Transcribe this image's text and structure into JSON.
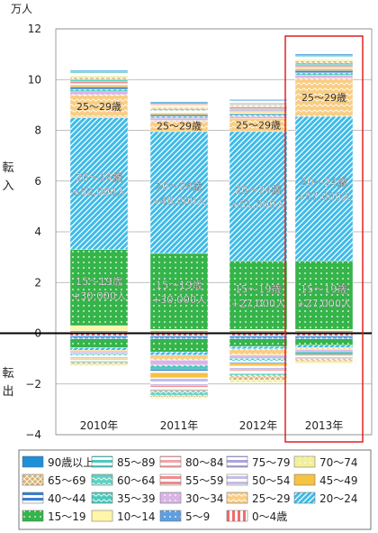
{
  "chart_data": {
    "type": "bar",
    "stacked": true,
    "title": "",
    "unit": "万人",
    "y_side_label_top": "転入",
    "y_side_label_bottom": "転出",
    "ylim": [
      -4,
      12
    ],
    "yticks": [
      "12",
      "10",
      "8",
      "6",
      "4",
      "2",
      "0",
      "−2",
      "−4"
    ],
    "categories": [
      "2010年",
      "2011年",
      "2012年",
      "2013年"
    ],
    "highlight_category": "2013年",
    "grid": true,
    "legend_position": "bottom",
    "series": [
      {
        "name": "90歳以上",
        "color": "#1e8fd8",
        "pattern": "solid",
        "values": [
          0.04,
          0.04,
          0.04,
          0.04
        ]
      },
      {
        "name": "85～89",
        "color": "#4fc7c0",
        "pattern": "hstripe",
        "values": [
          0.06,
          0.05,
          0.05,
          0.06
        ]
      },
      {
        "name": "80～84",
        "color": "#f3a3a6",
        "pattern": "hstripe",
        "values": [
          0.06,
          0.05,
          0.05,
          0.06
        ]
      },
      {
        "name": "75～79",
        "color": "#a9a4e0",
        "pattern": "hstripe",
        "values": [
          0.06,
          0.05,
          0.05,
          0.06
        ]
      },
      {
        "name": "70～74",
        "color": "#f2ef9a",
        "pattern": "dots",
        "values": [
          0.06,
          0.05,
          0.05,
          0.06
        ]
      },
      {
        "name": "65～69",
        "color": "#d8b271",
        "pattern": "cross",
        "values": [
          0.07,
          0.05,
          0.05,
          0.07
        ]
      },
      {
        "name": "60～64",
        "color": "#5ed1c2",
        "pattern": "wave",
        "values": [
          0.08,
          0.06,
          0.06,
          0.08
        ]
      },
      {
        "name": "55～59",
        "color": "#f08a8a",
        "pattern": "hstripe",
        "values": [
          0.07,
          0.05,
          0.05,
          0.07
        ]
      },
      {
        "name": "50～54",
        "color": "#c4bde6",
        "pattern": "hstripe",
        "values": [
          0.07,
          0.05,
          0.05,
          0.07
        ]
      },
      {
        "name": "45～49",
        "color": "#f6c242",
        "pattern": "solid",
        "values": [
          0.08,
          0.06,
          0.06,
          0.08
        ]
      },
      {
        "name": "40～44",
        "color": "#3a7fd0",
        "pattern": "hstripe",
        "values": [
          0.09,
          0.07,
          0.07,
          0.09
        ]
      },
      {
        "name": "35～39",
        "color": "#4cc8bd",
        "pattern": "wave",
        "values": [
          0.1,
          0.07,
          0.07,
          0.1
        ]
      },
      {
        "name": "30～34",
        "color": "#d9b5e6",
        "pattern": "dots",
        "values": [
          0.12,
          0.09,
          0.09,
          0.12
        ]
      },
      {
        "name": "25～29",
        "color": "#f9cd82",
        "pattern": "wave",
        "values": [
          0.9,
          0.44,
          0.52,
          1.5
        ]
      },
      {
        "name": "20～24",
        "color": "#3dbbe8",
        "pattern": "diag",
        "values": [
          5.2,
          4.8,
          5.1,
          5.7
        ],
        "labels": [
          "20～24歳\n+52,000人",
          "20～24歳\n+48,000人",
          "20～24歳\n+51,000人",
          "20～24歳\n+57,000人"
        ]
      },
      {
        "name": "15～19",
        "color": "#35b44a",
        "pattern": "dots",
        "values": [
          3.0,
          3.0,
          2.7,
          2.7
        ],
        "labels": [
          "15～19歳\n+30,000人",
          "15～19歳\n+30,000人",
          "15～19歳\n+27,000人",
          "15～19歳\n+27,000人"
        ]
      },
      {
        "name": "10～14",
        "color": "#fff6a8",
        "pattern": "solid",
        "values": [
          0.2,
          0.05,
          0.05,
          0.05
        ]
      },
      {
        "name": "5～9",
        "color": "#5f9fe0",
        "pattern": "dots",
        "values": [
          0.05,
          0.05,
          0.05,
          0.05
        ]
      },
      {
        "name": "0～4歳",
        "color": "#f26c6c",
        "pattern": "vstripe",
        "values": [
          0.05,
          0.05,
          0.05,
          0.05
        ]
      }
    ],
    "negative_values": [
      [
        -0.1,
        -0.1,
        -0.1,
        -0.1
      ],
      [
        -0.12,
        -0.12,
        -0.12,
        -0.12
      ],
      [
        -0.35,
        -0.52,
        -0.3,
        -0.25
      ],
      [
        -0.1,
        -0.12,
        -0.1,
        -0.1
      ],
      [
        -0.07,
        -0.2,
        -0.25,
        -0.07
      ],
      [
        -0.07,
        -0.2,
        -0.12,
        -0.07
      ],
      [
        -0.07,
        -0.15,
        -0.1,
        -0.07
      ],
      [
        -0.06,
        -0.15,
        -0.1,
        -0.06
      ],
      [
        -0.06,
        -0.2,
        -0.1,
        -0.06
      ],
      [
        -0.05,
        -0.3,
        -0.15,
        -0.05
      ],
      [
        -0.05,
        -0.2,
        -0.15,
        -0.05
      ],
      [
        -0.05,
        -0.18,
        -0.1,
        -0.05
      ],
      [
        -0.07,
        -0.08,
        -0.15,
        -0.07
      ],
      [
        -0.06,
        -0.05,
        -0.1,
        -0.06
      ]
    ],
    "negative_series": [
      "0～4歳",
      "5～9",
      "15～19",
      "20～24",
      "25～29",
      "30～34",
      "35～39",
      "40～44",
      "45～49",
      "50～54",
      "55～59",
      "60～64",
      "65～69",
      "70～74"
    ]
  }
}
